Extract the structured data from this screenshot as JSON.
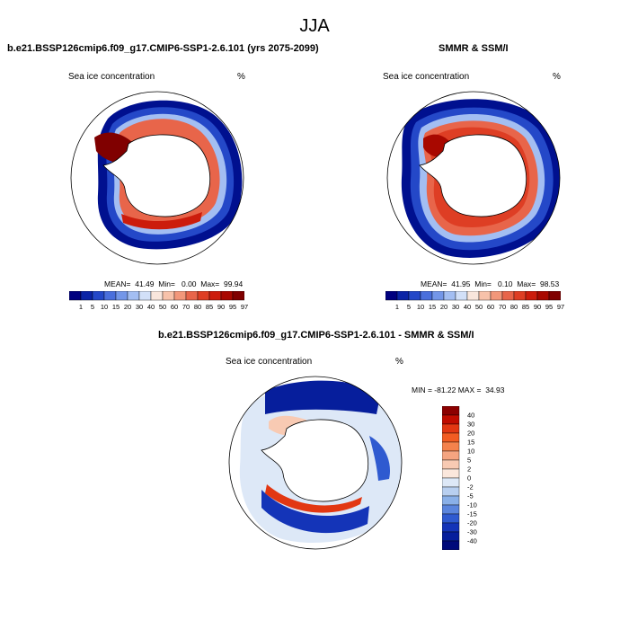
{
  "season": "JJA",
  "panels": [
    {
      "title": "b.e21.BSSP126cmip6.f09_g17.CMIP6-SSP1-2.6.101 (yrs 2075-2099)",
      "variable": "Sea ice concentration",
      "units": "%",
      "stats": "MEAN=  41.49  Min=   0.00  Max=  99.94"
    },
    {
      "title": "SMMR & SSM/I",
      "variable": "Sea ice concentration",
      "units": "%",
      "stats": "MEAN=  41.95  Min=   0.10  Max=  98.53"
    },
    {
      "title": "b.e21.BSSP126cmip6.f09_g17.CMIP6-SSP1-2.6.101 - SMMR & SSM/I",
      "variable": "Sea ice concentration",
      "units": "%",
      "stats": "MIN = -81.22 MAX =  34.93"
    }
  ],
  "colorbar_levels": [
    "1",
    "5",
    "10",
    "15",
    "20",
    "30",
    "40",
    "50",
    "60",
    "70",
    "80",
    "85",
    "90",
    "95",
    "97"
  ],
  "colorbar_colors": [
    "#00007f",
    "#0b24a6",
    "#2448c8",
    "#4a6fdc",
    "#7396e8",
    "#a3bef2",
    "#d2e0f8",
    "#f9e6dc",
    "#f7c2aa",
    "#f2977a",
    "#e8654a",
    "#de3e24",
    "#cc1c0c",
    "#a80800",
    "#800000"
  ],
  "diff_levels": [
    "40",
    "30",
    "20",
    "15",
    "10",
    "5",
    "2",
    "0",
    "-2",
    "-5",
    "-10",
    "-15",
    "-20",
    "-30",
    "-40"
  ],
  "diff_colors": [
    "#8c0000",
    "#c00c00",
    "#e23712",
    "#f25c22",
    "#f4824c",
    "#f5a480",
    "#f8cab3",
    "#fbe7dc",
    "#dde8f7",
    "#b8cff0",
    "#8ab0e8",
    "#5b85dd",
    "#2f5ad0",
    "#1434b8",
    "#061e9c",
    "#000a7a"
  ]
}
